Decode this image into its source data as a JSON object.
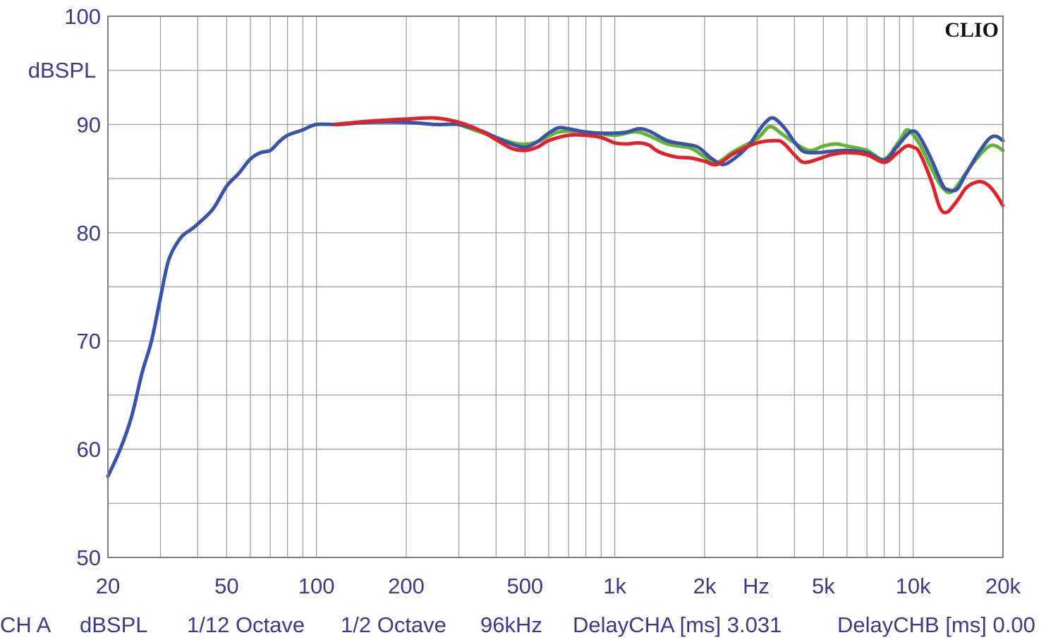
{
  "chart_data": {
    "type": "line",
    "watermark": "CLIO",
    "y_unit_label": "dBSPL",
    "x_unit_label": "Hz",
    "x_scale": "log",
    "xlim": [
      20,
      20000
    ],
    "ylim": [
      50,
      100
    ],
    "grid": true,
    "y_ticks": [
      {
        "value": 50,
        "label": "50"
      },
      {
        "value": 60,
        "label": "60"
      },
      {
        "value": 70,
        "label": "70"
      },
      {
        "value": 80,
        "label": "80"
      },
      {
        "value": 90,
        "label": "90"
      },
      {
        "value": 100,
        "label": "100"
      }
    ],
    "x_ticks": [
      {
        "value": 20,
        "label": "20"
      },
      {
        "value": 50,
        "label": "50"
      },
      {
        "value": 100,
        "label": "100"
      },
      {
        "value": 200,
        "label": "200"
      },
      {
        "value": 500,
        "label": "500"
      },
      {
        "value": 1000,
        "label": "1k"
      },
      {
        "value": 2000,
        "label": "2k"
      },
      {
        "value": 5000,
        "label": "5k"
      },
      {
        "value": 10000,
        "label": "10k"
      },
      {
        "value": 20000,
        "label": "20k"
      }
    ],
    "series": [
      {
        "color": "#62b336",
        "points": [
          [
            300,
            90.0
          ],
          [
            400,
            88.8
          ],
          [
            480,
            88.2
          ],
          [
            550,
            88.4
          ],
          [
            650,
            89.3
          ],
          [
            800,
            89.3
          ],
          [
            1000,
            89.0
          ],
          [
            1200,
            89.3
          ],
          [
            1500,
            88.2
          ],
          [
            1800,
            87.8
          ],
          [
            2000,
            87.0
          ],
          [
            2200,
            86.5
          ],
          [
            2500,
            87.5
          ],
          [
            3000,
            88.7
          ],
          [
            3300,
            89.8
          ],
          [
            3600,
            89.2
          ],
          [
            4000,
            88.3
          ],
          [
            4500,
            87.6
          ],
          [
            5000,
            88.0
          ],
          [
            5500,
            88.2
          ],
          [
            6000,
            88.0
          ],
          [
            7000,
            87.6
          ],
          [
            8000,
            86.8
          ],
          [
            9000,
            88.5
          ],
          [
            9600,
            89.5
          ],
          [
            10500,
            88.2
          ],
          [
            11500,
            86.0
          ],
          [
            12500,
            84.2
          ],
          [
            13500,
            83.8
          ],
          [
            15000,
            85.5
          ],
          [
            16500,
            87.0
          ],
          [
            18000,
            88.0
          ],
          [
            19000,
            88.0
          ],
          [
            20000,
            87.6
          ]
        ]
      },
      {
        "color": "#3a52a8",
        "points": [
          [
            20,
            57.5
          ],
          [
            22,
            60
          ],
          [
            24,
            63
          ],
          [
            26,
            67
          ],
          [
            28,
            70
          ],
          [
            30,
            74
          ],
          [
            32,
            77.5
          ],
          [
            35,
            79.5
          ],
          [
            38,
            80.3
          ],
          [
            40,
            80.8
          ],
          [
            45,
            82.2
          ],
          [
            50,
            84.3
          ],
          [
            55,
            85.5
          ],
          [
            60,
            86.8
          ],
          [
            65,
            87.4
          ],
          [
            70,
            87.6
          ],
          [
            75,
            88.4
          ],
          [
            80,
            89.0
          ],
          [
            90,
            89.5
          ],
          [
            100,
            90.0
          ],
          [
            120,
            90.0
          ],
          [
            150,
            90.2
          ],
          [
            200,
            90.2
          ],
          [
            250,
            90.0
          ],
          [
            300,
            90.0
          ],
          [
            350,
            89.5
          ],
          [
            400,
            88.8
          ],
          [
            450,
            88.2
          ],
          [
            500,
            87.9
          ],
          [
            550,
            88.4
          ],
          [
            600,
            89.2
          ],
          [
            650,
            89.7
          ],
          [
            700,
            89.6
          ],
          [
            800,
            89.3
          ],
          [
            900,
            89.2
          ],
          [
            1000,
            89.2
          ],
          [
            1100,
            89.3
          ],
          [
            1200,
            89.6
          ],
          [
            1300,
            89.4
          ],
          [
            1500,
            88.5
          ],
          [
            1700,
            88.2
          ],
          [
            1900,
            87.9
          ],
          [
            2100,
            86.9
          ],
          [
            2300,
            86.3
          ],
          [
            2500,
            86.8
          ],
          [
            2800,
            88.0
          ],
          [
            3000,
            89.2
          ],
          [
            3200,
            90.2
          ],
          [
            3400,
            90.6
          ],
          [
            3700,
            89.7
          ],
          [
            4000,
            88.4
          ],
          [
            4300,
            87.5
          ],
          [
            4800,
            87.4
          ],
          [
            5200,
            87.5
          ],
          [
            6000,
            87.6
          ],
          [
            7000,
            87.4
          ],
          [
            8000,
            86.7
          ],
          [
            8800,
            87.9
          ],
          [
            9500,
            89.0
          ],
          [
            10000,
            89.4
          ],
          [
            10500,
            88.9
          ],
          [
            11500,
            86.8
          ],
          [
            12500,
            84.5
          ],
          [
            13000,
            84.0
          ],
          [
            14000,
            84.0
          ],
          [
            15000,
            85.4
          ],
          [
            16500,
            87.3
          ],
          [
            18000,
            88.7
          ],
          [
            19000,
            88.9
          ],
          [
            20000,
            88.5
          ]
        ]
      },
      {
        "color": "#e0232b",
        "points": [
          [
            115,
            90.0
          ],
          [
            150,
            90.3
          ],
          [
            200,
            90.5
          ],
          [
            250,
            90.6
          ],
          [
            300,
            90.2
          ],
          [
            350,
            89.5
          ],
          [
            400,
            88.6
          ],
          [
            450,
            87.8
          ],
          [
            500,
            87.6
          ],
          [
            550,
            87.9
          ],
          [
            600,
            88.5
          ],
          [
            700,
            89.0
          ],
          [
            800,
            89.0
          ],
          [
            900,
            88.8
          ],
          [
            1000,
            88.3
          ],
          [
            1100,
            88.2
          ],
          [
            1200,
            88.3
          ],
          [
            1300,
            88.1
          ],
          [
            1400,
            87.5
          ],
          [
            1600,
            87.0
          ],
          [
            1800,
            86.9
          ],
          [
            2000,
            86.6
          ],
          [
            2200,
            86.3
          ],
          [
            2500,
            87.3
          ],
          [
            3000,
            88.3
          ],
          [
            3500,
            88.5
          ],
          [
            3700,
            88.2
          ],
          [
            4000,
            87.2
          ],
          [
            4300,
            86.5
          ],
          [
            4800,
            86.8
          ],
          [
            5300,
            87.2
          ],
          [
            6000,
            87.4
          ],
          [
            7000,
            87.2
          ],
          [
            8000,
            86.5
          ],
          [
            8800,
            87.3
          ],
          [
            9500,
            88.0
          ],
          [
            10000,
            87.9
          ],
          [
            10500,
            87.4
          ],
          [
            11500,
            84.8
          ],
          [
            12300,
            82.3
          ],
          [
            13000,
            81.9
          ],
          [
            14000,
            82.9
          ],
          [
            15000,
            84.1
          ],
          [
            16000,
            84.6
          ],
          [
            17000,
            84.7
          ],
          [
            18000,
            84.3
          ],
          [
            19000,
            83.5
          ],
          [
            20000,
            82.5
          ]
        ]
      }
    ]
  },
  "footer": {
    "channel": "CH A",
    "unit": "dBSPL",
    "smoothing": "1/12 Octave",
    "resolution": "1/2 Octave",
    "sample_rate": "96kHz",
    "delay_cha": "DelayCHA [ms] 3.031",
    "delay_chb": "DelayCHB [ms] 0.00"
  }
}
